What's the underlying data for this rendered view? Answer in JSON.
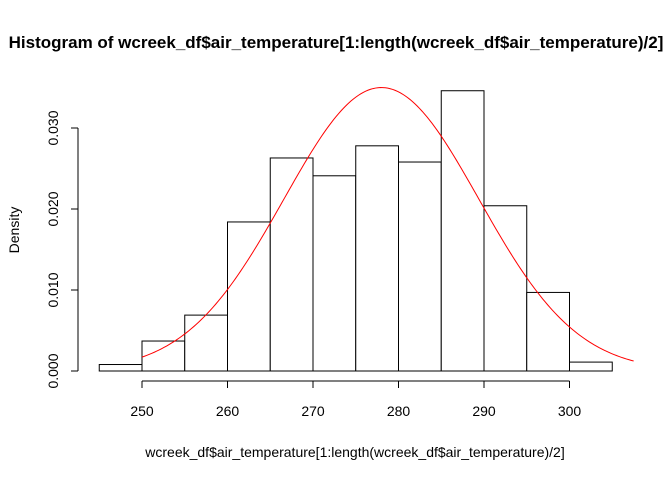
{
  "chart_data": {
    "type": "bar",
    "title": "Histogram of wcreek_df$air_temperature[1:length(wcreek_df$air_temperature)/2]",
    "xlabel": "wcreek_df$air_temperature[1:length(wcreek_df$air_temperature)/2]",
    "ylabel": "Density",
    "bins": [
      {
        "x0": 245,
        "x1": 250,
        "density": 0.0008
      },
      {
        "x0": 250,
        "x1": 255,
        "density": 0.0037
      },
      {
        "x0": 255,
        "x1": 260,
        "density": 0.0069
      },
      {
        "x0": 260,
        "x1": 265,
        "density": 0.0184
      },
      {
        "x0": 265,
        "x1": 270,
        "density": 0.0263
      },
      {
        "x0": 270,
        "x1": 275,
        "density": 0.0241
      },
      {
        "x0": 275,
        "x1": 280,
        "density": 0.0278
      },
      {
        "x0": 280,
        "x1": 285,
        "density": 0.0258
      },
      {
        "x0": 285,
        "x1": 290,
        "density": 0.0346
      },
      {
        "x0": 290,
        "x1": 295,
        "density": 0.0204
      },
      {
        "x0": 295,
        "x1": 300,
        "density": 0.0097
      },
      {
        "x0": 300,
        "x1": 305,
        "density": 0.0011
      }
    ],
    "density_curve": {
      "distribution": "normal",
      "mean": 278,
      "sd": 11.4,
      "x_range": [
        250,
        307.5
      ],
      "color": "#ff0000"
    },
    "xticks": [
      "250",
      "260",
      "270",
      "280",
      "290",
      "300"
    ],
    "yticks": [
      "0.000",
      "0.010",
      "0.020",
      "0.030"
    ],
    "xlim": [
      243,
      309
    ],
    "ylim": [
      0,
      0.035
    ],
    "bar_fill": "#ffffff",
    "bar_stroke": "#000000",
    "grid": false,
    "legend": "none"
  }
}
